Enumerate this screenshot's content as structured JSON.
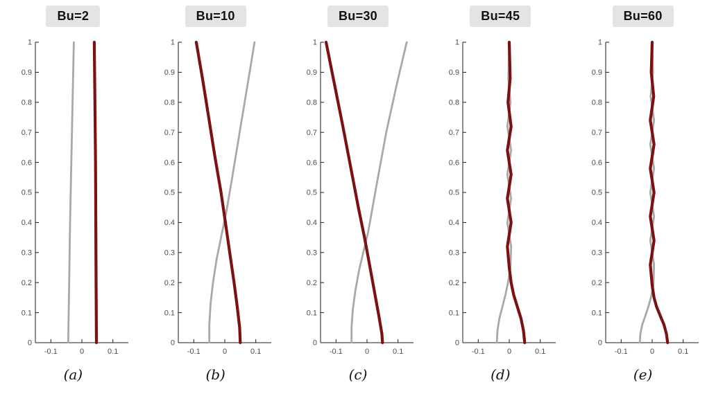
{
  "figure": {
    "axis_color": "#1a1a1a",
    "tick_label_color": "#4d4d4d"
  },
  "chart_data": [
    {
      "type": "line",
      "title": "Bu=2",
      "caption": "(a)",
      "xlim": [
        -0.15,
        0.15
      ],
      "ylim": [
        0,
        1
      ],
      "xticks": [
        -0.1,
        0,
        0.1
      ],
      "yticks": [
        0,
        0.1,
        0.2,
        0.3,
        0.4,
        0.5,
        0.6,
        0.7,
        0.8,
        0.9,
        1
      ],
      "series": [
        {
          "name": "gray-mode",
          "color": "#a8a8a8",
          "width": 2.8,
          "points": [
            [
              -0.044,
              0
            ],
            [
              -0.041,
              0.2
            ],
            [
              -0.038,
              0.4
            ],
            [
              -0.034,
              0.6
            ],
            [
              -0.03,
              0.8
            ],
            [
              -0.026,
              1
            ]
          ]
        },
        {
          "name": "dark-red-mode",
          "color": "#7c1113",
          "width": 4.2,
          "points": [
            [
              0.047,
              0
            ],
            [
              0.046,
              0.2
            ],
            [
              0.045,
              0.4
            ],
            [
              0.044,
              0.6
            ],
            [
              0.042,
              0.8
            ],
            [
              0.04,
              1
            ]
          ]
        }
      ]
    },
    {
      "type": "line",
      "title": "Bu=10",
      "caption": "(b)",
      "xlim": [
        -0.15,
        0.15
      ],
      "ylim": [
        0,
        1
      ],
      "xticks": [
        -0.1,
        0,
        0.1
      ],
      "yticks": [
        0,
        0.1,
        0.2,
        0.3,
        0.4,
        0.5,
        0.6,
        0.7,
        0.8,
        0.9,
        1
      ],
      "series": [
        {
          "name": "gray-mode",
          "color": "#a8a8a8",
          "width": 2.8,
          "points": [
            [
              -0.05,
              0
            ],
            [
              -0.05,
              0.06
            ],
            [
              -0.046,
              0.13
            ],
            [
              -0.038,
              0.2
            ],
            [
              -0.026,
              0.28
            ],
            [
              -0.01,
              0.36
            ],
            [
              0.004,
              0.43
            ],
            [
              0.024,
              0.55
            ],
            [
              0.048,
              0.7
            ],
            [
              0.072,
              0.85
            ],
            [
              0.096,
              1
            ]
          ]
        },
        {
          "name": "dark-red-mode",
          "color": "#7c1113",
          "width": 4.2,
          "points": [
            [
              -0.092,
              1
            ],
            [
              -0.072,
              0.88
            ],
            [
              -0.052,
              0.75
            ],
            [
              -0.032,
              0.62
            ],
            [
              -0.012,
              0.5
            ],
            [
              0.002,
              0.4
            ],
            [
              0.016,
              0.3
            ],
            [
              0.03,
              0.2
            ],
            [
              0.04,
              0.12
            ],
            [
              0.048,
              0.05
            ],
            [
              0.05,
              0
            ]
          ]
        }
      ]
    },
    {
      "type": "line",
      "title": "Bu=30",
      "caption": "(c)",
      "xlim": [
        -0.15,
        0.15
      ],
      "ylim": [
        0,
        1
      ],
      "xticks": [
        -0.1,
        0,
        0.1
      ],
      "yticks": [
        0,
        0.1,
        0.2,
        0.3,
        0.4,
        0.5,
        0.6,
        0.7,
        0.8,
        0.9,
        1
      ],
      "series": [
        {
          "name": "gray-mode",
          "color": "#a8a8a8",
          "width": 2.8,
          "points": [
            [
              -0.05,
              0
            ],
            [
              -0.05,
              0.05
            ],
            [
              -0.046,
              0.11
            ],
            [
              -0.038,
              0.17
            ],
            [
              -0.026,
              0.24
            ],
            [
              -0.012,
              0.3
            ],
            [
              0.004,
              0.37
            ],
            [
              0.03,
              0.52
            ],
            [
              0.062,
              0.7
            ],
            [
              0.096,
              0.86
            ],
            [
              0.128,
              1
            ]
          ]
        },
        {
          "name": "dark-red-mode",
          "color": "#7c1113",
          "width": 4.2,
          "points": [
            [
              -0.132,
              1
            ],
            [
              -0.105,
              0.86
            ],
            [
              -0.078,
              0.72
            ],
            [
              -0.052,
              0.58
            ],
            [
              -0.028,
              0.45
            ],
            [
              -0.008,
              0.35
            ],
            [
              0.008,
              0.26
            ],
            [
              0.024,
              0.17
            ],
            [
              0.038,
              0.09
            ],
            [
              0.048,
              0.03
            ],
            [
              0.05,
              0
            ]
          ]
        }
      ]
    },
    {
      "type": "line",
      "title": "Bu=45",
      "caption": "(d)",
      "xlim": [
        -0.15,
        0.15
      ],
      "ylim": [
        0,
        1
      ],
      "xticks": [
        -0.1,
        0,
        0.1
      ],
      "yticks": [
        0,
        0.1,
        0.2,
        0.3,
        0.4,
        0.5,
        0.6,
        0.7,
        0.8,
        0.9,
        1
      ],
      "series": [
        {
          "name": "gray-mode",
          "color": "#a8a8a8",
          "width": 2.8,
          "points": [
            [
              -0.04,
              0
            ],
            [
              -0.038,
              0.04
            ],
            [
              -0.032,
              0.08
            ],
            [
              -0.022,
              0.12
            ],
            [
              -0.012,
              0.16
            ],
            [
              -0.004,
              0.2
            ],
            [
              0.004,
              0.25
            ],
            [
              0.006,
              0.32
            ],
            [
              -0.006,
              0.4
            ],
            [
              0.006,
              0.48
            ],
            [
              -0.006,
              0.56
            ],
            [
              0.006,
              0.64
            ],
            [
              -0.006,
              0.72
            ],
            [
              0.004,
              0.8
            ],
            [
              -0.003,
              0.88
            ],
            [
              0.0,
              1
            ]
          ]
        },
        {
          "name": "dark-red-mode",
          "color": "#7c1113",
          "width": 4.2,
          "points": [
            [
              0.05,
              0
            ],
            [
              0.046,
              0.04
            ],
            [
              0.038,
              0.08
            ],
            [
              0.026,
              0.12
            ],
            [
              0.014,
              0.16
            ],
            [
              0.006,
              0.2
            ],
            [
              0.0,
              0.25
            ],
            [
              -0.006,
              0.32
            ],
            [
              0.006,
              0.4
            ],
            [
              -0.006,
              0.48
            ],
            [
              0.006,
              0.56
            ],
            [
              -0.006,
              0.64
            ],
            [
              0.006,
              0.72
            ],
            [
              -0.004,
              0.8
            ],
            [
              0.003,
              0.88
            ],
            [
              0.0,
              1
            ]
          ]
        }
      ]
    },
    {
      "type": "line",
      "title": "Bu=60",
      "caption": "(e)",
      "xlim": [
        -0.15,
        0.15
      ],
      "ylim": [
        0,
        1
      ],
      "xticks": [
        -0.1,
        0,
        0.1
      ],
      "yticks": [
        0,
        0.1,
        0.2,
        0.3,
        0.4,
        0.5,
        0.6,
        0.7,
        0.8,
        0.9,
        1
      ],
      "series": [
        {
          "name": "gray-mode",
          "color": "#a8a8a8",
          "width": 2.8,
          "points": [
            [
              -0.04,
              0
            ],
            [
              -0.038,
              0.03
            ],
            [
              -0.032,
              0.06
            ],
            [
              -0.022,
              0.09
            ],
            [
              -0.012,
              0.12
            ],
            [
              -0.004,
              0.15
            ],
            [
              0.004,
              0.19
            ],
            [
              0.006,
              0.26
            ],
            [
              -0.006,
              0.34
            ],
            [
              0.006,
              0.42
            ],
            [
              -0.006,
              0.5
            ],
            [
              0.006,
              0.58
            ],
            [
              -0.006,
              0.66
            ],
            [
              0.006,
              0.74
            ],
            [
              -0.005,
              0.82
            ],
            [
              0.003,
              0.9
            ],
            [
              0.0,
              1
            ]
          ]
        },
        {
          "name": "dark-red-mode",
          "color": "#7c1113",
          "width": 4.2,
          "points": [
            [
              0.05,
              0
            ],
            [
              0.046,
              0.03
            ],
            [
              0.038,
              0.06
            ],
            [
              0.026,
              0.09
            ],
            [
              0.014,
              0.12
            ],
            [
              0.006,
              0.15
            ],
            [
              0.0,
              0.19
            ],
            [
              -0.006,
              0.26
            ],
            [
              0.006,
              0.34
            ],
            [
              -0.006,
              0.42
            ],
            [
              0.006,
              0.5
            ],
            [
              -0.006,
              0.58
            ],
            [
              0.006,
              0.66
            ],
            [
              -0.006,
              0.74
            ],
            [
              0.005,
              0.82
            ],
            [
              -0.003,
              0.9
            ],
            [
              0.0,
              1
            ]
          ]
        }
      ]
    }
  ]
}
